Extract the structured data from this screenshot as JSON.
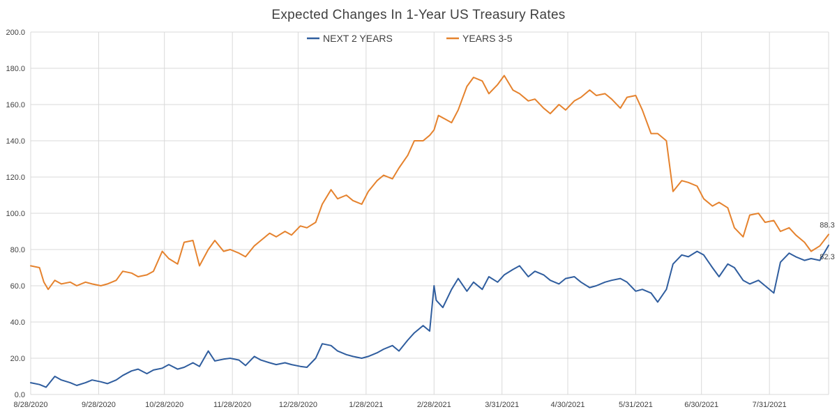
{
  "chart_data": {
    "type": "line",
    "title": "Expected Changes In 1-Year US Treasury Rates",
    "xlabel": "",
    "ylabel": "",
    "ylim": [
      0,
      200
    ],
    "yticks": [
      "0.0",
      "20.0",
      "40.0",
      "60.0",
      "80.0",
      "100.0",
      "120.0",
      "140.0",
      "160.0",
      "180.0",
      "200.0"
    ],
    "xlim": [
      "2020-08-28",
      "2021-08-27"
    ],
    "xticks": [
      {
        "date": "2020-08-28",
        "label": "8/28/2020"
      },
      {
        "date": "2020-09-28",
        "label": "9/28/2020"
      },
      {
        "date": "2020-10-28",
        "label": "10/28/2020"
      },
      {
        "date": "2020-11-28",
        "label": "11/28/2020"
      },
      {
        "date": "2020-12-28",
        "label": "12/28/2020"
      },
      {
        "date": "2021-01-28",
        "label": "1/28/2021"
      },
      {
        "date": "2021-02-28",
        "label": "2/28/2021"
      },
      {
        "date": "2021-03-31",
        "label": "3/31/2021"
      },
      {
        "date": "2021-04-30",
        "label": "4/30/2021"
      },
      {
        "date": "2021-05-31",
        "label": "5/31/2021"
      },
      {
        "date": "2021-06-30",
        "label": "6/30/2021"
      },
      {
        "date": "2021-07-31",
        "label": "7/31/2021"
      }
    ],
    "grid": {
      "horizontal": true,
      "vertical": true
    },
    "legend": {
      "placement": "top-center"
    },
    "series": [
      {
        "name": "NEXT 2 YEARS",
        "color": "#2f5d9e",
        "end_label": "82.3",
        "points": [
          [
            "2020-08-28",
            6.5
          ],
          [
            "2020-09-01",
            5.5
          ],
          [
            "2020-09-04",
            4.0
          ],
          [
            "2020-09-08",
            10.0
          ],
          [
            "2020-09-11",
            8.0
          ],
          [
            "2020-09-15",
            6.5
          ],
          [
            "2020-09-18",
            5.0
          ],
          [
            "2020-09-22",
            6.5
          ],
          [
            "2020-09-25",
            8.0
          ],
          [
            "2020-09-29",
            7.0
          ],
          [
            "2020-10-02",
            6.0
          ],
          [
            "2020-10-06",
            8.0
          ],
          [
            "2020-10-09",
            10.5
          ],
          [
            "2020-10-13",
            13.0
          ],
          [
            "2020-10-16",
            14.0
          ],
          [
            "2020-10-20",
            11.5
          ],
          [
            "2020-10-23",
            13.5
          ],
          [
            "2020-10-27",
            14.5
          ],
          [
            "2020-10-30",
            16.5
          ],
          [
            "2020-11-03",
            14.0
          ],
          [
            "2020-11-06",
            15.0
          ],
          [
            "2020-11-10",
            17.5
          ],
          [
            "2020-11-13",
            15.5
          ],
          [
            "2020-11-17",
            24.0
          ],
          [
            "2020-11-20",
            18.5
          ],
          [
            "2020-11-24",
            19.5
          ],
          [
            "2020-11-27",
            20.0
          ],
          [
            "2020-12-01",
            19.0
          ],
          [
            "2020-12-04",
            16.0
          ],
          [
            "2020-12-08",
            21.0
          ],
          [
            "2020-12-11",
            19.0
          ],
          [
            "2020-12-15",
            17.5
          ],
          [
            "2020-12-18",
            16.5
          ],
          [
            "2020-12-22",
            17.5
          ],
          [
            "2020-12-25",
            16.5
          ],
          [
            "2020-12-29",
            15.5
          ],
          [
            "2021-01-01",
            15.0
          ],
          [
            "2021-01-05",
            20.0
          ],
          [
            "2021-01-08",
            28.0
          ],
          [
            "2021-01-12",
            27.0
          ],
          [
            "2021-01-15",
            24.0
          ],
          [
            "2021-01-19",
            22.0
          ],
          [
            "2021-01-22",
            21.0
          ],
          [
            "2021-01-26",
            20.0
          ],
          [
            "2021-01-29",
            21.0
          ],
          [
            "2021-02-02",
            23.0
          ],
          [
            "2021-02-05",
            25.0
          ],
          [
            "2021-02-09",
            27.0
          ],
          [
            "2021-02-12",
            24.0
          ],
          [
            "2021-02-16",
            30.0
          ],
          [
            "2021-02-19",
            34.0
          ],
          [
            "2021-02-23",
            38.0
          ],
          [
            "2021-02-26",
            35.0
          ],
          [
            "2021-02-28",
            60.0
          ],
          [
            "2021-03-01",
            52.0
          ],
          [
            "2021-03-04",
            48.0
          ],
          [
            "2021-03-08",
            58.0
          ],
          [
            "2021-03-11",
            64.0
          ],
          [
            "2021-03-15",
            57.0
          ],
          [
            "2021-03-18",
            62.0
          ],
          [
            "2021-03-22",
            58.0
          ],
          [
            "2021-03-25",
            65.0
          ],
          [
            "2021-03-29",
            62.0
          ],
          [
            "2021-04-01",
            66.0
          ],
          [
            "2021-04-05",
            69.0
          ],
          [
            "2021-04-08",
            71.0
          ],
          [
            "2021-04-12",
            65.0
          ],
          [
            "2021-04-15",
            68.0
          ],
          [
            "2021-04-19",
            66.0
          ],
          [
            "2021-04-22",
            63.0
          ],
          [
            "2021-04-26",
            61.0
          ],
          [
            "2021-04-29",
            64.0
          ],
          [
            "2021-05-03",
            65.0
          ],
          [
            "2021-05-06",
            62.0
          ],
          [
            "2021-05-10",
            59.0
          ],
          [
            "2021-05-13",
            60.0
          ],
          [
            "2021-05-17",
            62.0
          ],
          [
            "2021-05-20",
            63.0
          ],
          [
            "2021-05-24",
            64.0
          ],
          [
            "2021-05-27",
            62.0
          ],
          [
            "2021-05-31",
            57.0
          ],
          [
            "2021-06-03",
            58.0
          ],
          [
            "2021-06-07",
            56.0
          ],
          [
            "2021-06-10",
            51.0
          ],
          [
            "2021-06-14",
            58.0
          ],
          [
            "2021-06-17",
            72.0
          ],
          [
            "2021-06-21",
            77.0
          ],
          [
            "2021-06-24",
            76.0
          ],
          [
            "2021-06-28",
            79.0
          ],
          [
            "2021-07-01",
            77.0
          ],
          [
            "2021-07-05",
            70.0
          ],
          [
            "2021-07-08",
            65.0
          ],
          [
            "2021-07-12",
            72.0
          ],
          [
            "2021-07-15",
            70.0
          ],
          [
            "2021-07-19",
            63.0
          ],
          [
            "2021-07-22",
            61.0
          ],
          [
            "2021-07-26",
            63.0
          ],
          [
            "2021-07-29",
            60.0
          ],
          [
            "2021-08-02",
            56.0
          ],
          [
            "2021-08-05",
            73.0
          ],
          [
            "2021-08-09",
            78.0
          ],
          [
            "2021-08-12",
            76.0
          ],
          [
            "2021-08-16",
            74.0
          ],
          [
            "2021-08-19",
            75.0
          ],
          [
            "2021-08-23",
            74.0
          ],
          [
            "2021-08-27",
            82.3
          ]
        ]
      },
      {
        "name": "YEARS 3-5",
        "color": "#e5822d",
        "end_label": "88.3",
        "points": [
          [
            "2020-08-28",
            71.0
          ],
          [
            "2020-09-01",
            70.0
          ],
          [
            "2020-09-03",
            62.0
          ],
          [
            "2020-09-05",
            58.0
          ],
          [
            "2020-09-08",
            63.0
          ],
          [
            "2020-09-11",
            61.0
          ],
          [
            "2020-09-15",
            62.0
          ],
          [
            "2020-09-18",
            60.0
          ],
          [
            "2020-09-22",
            62.0
          ],
          [
            "2020-09-25",
            61.0
          ],
          [
            "2020-09-29",
            60.0
          ],
          [
            "2020-10-02",
            61.0
          ],
          [
            "2020-10-06",
            63.0
          ],
          [
            "2020-10-09",
            68.0
          ],
          [
            "2020-10-13",
            67.0
          ],
          [
            "2020-10-16",
            65.0
          ],
          [
            "2020-10-20",
            66.0
          ],
          [
            "2020-10-23",
            68.0
          ],
          [
            "2020-10-27",
            79.0
          ],
          [
            "2020-10-30",
            75.0
          ],
          [
            "2020-11-03",
            72.0
          ],
          [
            "2020-11-06",
            84.0
          ],
          [
            "2020-11-10",
            85.0
          ],
          [
            "2020-11-13",
            71.0
          ],
          [
            "2020-11-17",
            80.0
          ],
          [
            "2020-11-20",
            85.0
          ],
          [
            "2020-11-24",
            79.0
          ],
          [
            "2020-11-27",
            80.0
          ],
          [
            "2020-12-01",
            78.0
          ],
          [
            "2020-12-04",
            76.0
          ],
          [
            "2020-12-08",
            82.0
          ],
          [
            "2020-12-11",
            85.0
          ],
          [
            "2020-12-15",
            89.0
          ],
          [
            "2020-12-18",
            87.0
          ],
          [
            "2020-12-22",
            90.0
          ],
          [
            "2020-12-25",
            88.0
          ],
          [
            "2020-12-29",
            93.0
          ],
          [
            "2021-01-01",
            92.0
          ],
          [
            "2021-01-05",
            95.0
          ],
          [
            "2021-01-08",
            105.0
          ],
          [
            "2021-01-12",
            113.0
          ],
          [
            "2021-01-15",
            108.0
          ],
          [
            "2021-01-19",
            110.0
          ],
          [
            "2021-01-22",
            107.0
          ],
          [
            "2021-01-26",
            105.0
          ],
          [
            "2021-01-29",
            112.0
          ],
          [
            "2021-02-02",
            118.0
          ],
          [
            "2021-02-05",
            121.0
          ],
          [
            "2021-02-09",
            119.0
          ],
          [
            "2021-02-12",
            125.0
          ],
          [
            "2021-02-16",
            132.0
          ],
          [
            "2021-02-19",
            140.0
          ],
          [
            "2021-02-23",
            140.0
          ],
          [
            "2021-02-26",
            143.0
          ],
          [
            "2021-02-28",
            146.0
          ],
          [
            "2021-03-02",
            154.0
          ],
          [
            "2021-03-05",
            152.0
          ],
          [
            "2021-03-08",
            150.0
          ],
          [
            "2021-03-11",
            157.0
          ],
          [
            "2021-03-15",
            170.0
          ],
          [
            "2021-03-18",
            175.0
          ],
          [
            "2021-03-22",
            173.0
          ],
          [
            "2021-03-25",
            166.0
          ],
          [
            "2021-03-29",
            171.0
          ],
          [
            "2021-04-01",
            176.0
          ],
          [
            "2021-04-05",
            168.0
          ],
          [
            "2021-04-08",
            166.0
          ],
          [
            "2021-04-12",
            162.0
          ],
          [
            "2021-04-15",
            163.0
          ],
          [
            "2021-04-19",
            158.0
          ],
          [
            "2021-04-22",
            155.0
          ],
          [
            "2021-04-26",
            160.0
          ],
          [
            "2021-04-29",
            157.0
          ],
          [
            "2021-05-03",
            162.0
          ],
          [
            "2021-05-06",
            164.0
          ],
          [
            "2021-05-10",
            168.0
          ],
          [
            "2021-05-13",
            165.0
          ],
          [
            "2021-05-17",
            166.0
          ],
          [
            "2021-05-20",
            163.0
          ],
          [
            "2021-05-24",
            158.0
          ],
          [
            "2021-05-27",
            164.0
          ],
          [
            "2021-05-31",
            165.0
          ],
          [
            "2021-06-03",
            157.0
          ],
          [
            "2021-06-07",
            144.0
          ],
          [
            "2021-06-10",
            144.0
          ],
          [
            "2021-06-14",
            140.0
          ],
          [
            "2021-06-17",
            112.0
          ],
          [
            "2021-06-21",
            118.0
          ],
          [
            "2021-06-24",
            117.0
          ],
          [
            "2021-06-28",
            115.0
          ],
          [
            "2021-07-01",
            108.0
          ],
          [
            "2021-07-05",
            104.0
          ],
          [
            "2021-07-08",
            106.0
          ],
          [
            "2021-07-12",
            103.0
          ],
          [
            "2021-07-15",
            92.0
          ],
          [
            "2021-07-19",
            87.0
          ],
          [
            "2021-07-22",
            99.0
          ],
          [
            "2021-07-26",
            100.0
          ],
          [
            "2021-07-29",
            95.0
          ],
          [
            "2021-08-02",
            96.0
          ],
          [
            "2021-08-05",
            90.0
          ],
          [
            "2021-08-09",
            92.0
          ],
          [
            "2021-08-12",
            88.0
          ],
          [
            "2021-08-16",
            84.0
          ],
          [
            "2021-08-19",
            79.0
          ],
          [
            "2021-08-23",
            82.0
          ],
          [
            "2021-08-27",
            88.3
          ]
        ]
      }
    ]
  }
}
